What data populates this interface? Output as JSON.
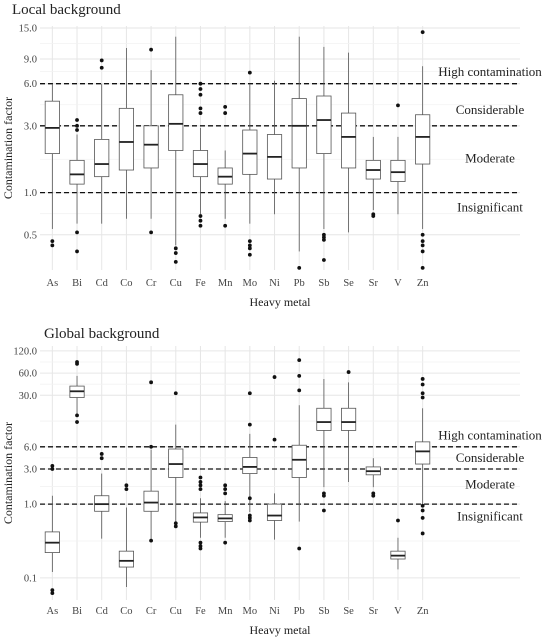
{
  "chart_data": [
    {
      "type": "box",
      "title": "Local background",
      "xlabel": "Heavy metal",
      "ylabel": "Contamination factor",
      "yscale": "log",
      "ylim": [
        0.28,
        15.5
      ],
      "yticks": [
        0.5,
        1.0,
        3.0,
        6.0,
        9.0,
        15.0
      ],
      "ytick_labels": [
        "0.5",
        "1.0",
        "3.0",
        "6.0",
        "9.0",
        "15.0"
      ],
      "grid": true,
      "thresholds": [
        {
          "value": 1.0,
          "label": "Insignificant"
        },
        {
          "value": 3.0,
          "label": "Moderate"
        },
        {
          "value": 6.0,
          "label": "Considerable"
        },
        {
          "value": 6.0,
          "label": "High contamination"
        }
      ],
      "zone_labels": [
        {
          "text": "High contamination",
          "at": 7.3
        },
        {
          "text": "Considerable",
          "at": 3.9
        },
        {
          "text": "Moderate",
          "at": 1.75
        },
        {
          "text": "Insignificant",
          "at": 0.78
        }
      ],
      "categories": [
        "As",
        "Bi",
        "Cd",
        "Co",
        "Cr",
        "Cu",
        "Fe",
        "Mn",
        "Mo",
        "Ni",
        "Pb",
        "Sb",
        "Se",
        "Sr",
        "V",
        "Zn"
      ],
      "boxes": [
        {
          "category": "As",
          "whislo": 0.55,
          "q1": 1.9,
          "med": 2.9,
          "q3": 4.5,
          "whishi": 6.0,
          "fliers": [
            0.42,
            0.45
          ]
        },
        {
          "category": "Bi",
          "whislo": 0.6,
          "q1": 1.15,
          "med": 1.35,
          "q3": 1.7,
          "whishi": 2.6,
          "fliers": [
            3.3,
            3.0,
            2.8,
            0.52,
            0.38
          ]
        },
        {
          "category": "Cd",
          "whislo": 0.6,
          "q1": 1.3,
          "med": 1.6,
          "q3": 2.4,
          "whishi": 6.0,
          "fliers": [
            7.8,
            8.8
          ]
        },
        {
          "category": "Co",
          "whislo": 0.65,
          "q1": 1.45,
          "med": 2.3,
          "q3": 4.0,
          "whishi": 10.8
        },
        {
          "category": "Cr",
          "whislo": 0.65,
          "q1": 1.5,
          "med": 2.2,
          "q3": 3.0,
          "whishi": 7.5,
          "fliers": [
            10.5,
            0.52
          ]
        },
        {
          "category": "Cu",
          "whislo": 0.42,
          "q1": 2.0,
          "med": 3.1,
          "q3": 5.0,
          "whishi": 13.0,
          "fliers": [
            0.4,
            0.37,
            0.32
          ]
        },
        {
          "category": "Fe",
          "whislo": 0.7,
          "q1": 1.3,
          "med": 1.6,
          "q3": 2.0,
          "whishi": 2.9,
          "fliers": [
            6.0,
            5.5,
            5.0,
            4.0,
            3.7,
            0.68,
            0.63,
            0.58
          ]
        },
        {
          "category": "Mn",
          "whislo": 0.65,
          "q1": 1.15,
          "med": 1.3,
          "q3": 1.5,
          "whishi": 2.0,
          "fliers": [
            4.1,
            3.7,
            0.58
          ]
        },
        {
          "category": "Mo",
          "whislo": 0.6,
          "q1": 1.35,
          "med": 1.9,
          "q3": 2.8,
          "whishi": 6.0,
          "fliers": [
            7.2,
            0.45,
            0.42,
            0.4,
            0.36
          ]
        },
        {
          "category": "Ni",
          "whislo": 0.7,
          "q1": 1.25,
          "med": 1.8,
          "q3": 2.6,
          "whishi": 6.3
        },
        {
          "category": "Pb",
          "whislo": 0.38,
          "q1": 1.5,
          "med": 3.0,
          "q3": 4.7,
          "whishi": 13.0,
          "fliers": [
            0.29
          ]
        },
        {
          "category": "Sb",
          "whislo": 0.55,
          "q1": 1.9,
          "med": 3.3,
          "q3": 4.9,
          "whishi": 11.0,
          "fliers": [
            0.5,
            0.48,
            0.46,
            0.33
          ]
        },
        {
          "category": "Se",
          "whislo": 0.52,
          "q1": 1.5,
          "med": 2.5,
          "q3": 3.7,
          "whishi": 10.0
        },
        {
          "category": "Sr",
          "whislo": 0.75,
          "q1": 1.25,
          "med": 1.45,
          "q3": 1.7,
          "whishi": 2.5,
          "fliers": [
            0.7,
            0.68
          ]
        },
        {
          "category": "V",
          "whislo": 0.7,
          "q1": 1.2,
          "med": 1.4,
          "q3": 1.7,
          "whishi": 2.5,
          "fliers": [
            4.2
          ]
        },
        {
          "category": "Zn",
          "whislo": 0.55,
          "q1": 1.6,
          "med": 2.5,
          "q3": 3.6,
          "whishi": 8.0,
          "fliers": [
            14.0,
            0.5,
            0.45,
            0.42,
            0.38,
            0.29
          ]
        }
      ]
    },
    {
      "type": "box",
      "title": "Global background",
      "xlabel": "Heavy metal",
      "ylabel": "Contamination factor",
      "yscale": "log",
      "ylim": [
        0.05,
        140
      ],
      "yticks": [
        0.1,
        1.0,
        3.0,
        6.0,
        30.0,
        60.0,
        120.0
      ],
      "ytick_labels": [
        "0.1",
        "1.0",
        "3.0",
        "6.0",
        "30.0",
        "60.0",
        "120.0"
      ],
      "grid": true,
      "thresholds": [
        {
          "value": 1.0,
          "label": "Insignificant"
        },
        {
          "value": 3.0,
          "label": "Moderate"
        },
        {
          "value": 6.0,
          "label": "Considerable"
        },
        {
          "value": 6.0,
          "label": "High contamination"
        }
      ],
      "zone_labels": [
        {
          "text": "High contamination",
          "at": 8.6
        },
        {
          "text": "Considerable",
          "at": 4.2
        },
        {
          "text": "Moderate",
          "at": 1.85
        },
        {
          "text": "Insignificant",
          "at": 0.68
        }
      ],
      "categories": [
        "As",
        "Bi",
        "Cd",
        "Co",
        "Cr",
        "Cu",
        "Fe",
        "Mn",
        "Mo",
        "Ni",
        "Pb",
        "Sb",
        "Se",
        "Sr",
        "V",
        "Zn"
      ],
      "boxes": [
        {
          "category": "As",
          "whislo": 0.12,
          "q1": 0.22,
          "med": 0.3,
          "q3": 0.42,
          "whishi": 1.3,
          "fliers": [
            3.3,
            3.0,
            0.068,
            0.062
          ]
        },
        {
          "category": "Bi",
          "whislo": 16.0,
          "q1": 28.0,
          "med": 34.0,
          "q3": 40.0,
          "whishi": 55.0,
          "fliers": [
            85.0,
            80.0,
            16.0,
            13.0
          ]
        },
        {
          "category": "Cd",
          "whislo": 0.34,
          "q1": 0.8,
          "med": 1.0,
          "q3": 1.3,
          "whishi": 2.6,
          "fliers": [
            4.8,
            4.2
          ]
        },
        {
          "category": "Co",
          "whislo": 0.075,
          "q1": 0.14,
          "med": 0.17,
          "q3": 0.23,
          "whishi": 0.9,
          "fliers": [
            1.8,
            1.6
          ]
        },
        {
          "category": "Cr",
          "whislo": 0.33,
          "q1": 0.8,
          "med": 1.05,
          "q3": 1.5,
          "whishi": 5.5,
          "fliers": [
            45.0,
            6.0,
            0.32
          ]
        },
        {
          "category": "Cu",
          "whislo": 0.55,
          "q1": 2.3,
          "med": 3.5,
          "q3": 5.6,
          "whishi": 12.0,
          "fliers": [
            32.0,
            0.55,
            0.5
          ]
        },
        {
          "category": "Fe",
          "whislo": 0.35,
          "q1": 0.57,
          "med": 0.66,
          "q3": 0.76,
          "whishi": 1.2,
          "fliers": [
            2.3,
            2.0,
            1.8,
            1.6,
            0.3,
            0.27,
            0.25
          ]
        },
        {
          "category": "Mn",
          "whislo": 0.35,
          "q1": 0.58,
          "med": 0.64,
          "q3": 0.72,
          "whishi": 1.1,
          "fliers": [
            1.8,
            1.6,
            1.4,
            0.3
          ]
        },
        {
          "category": "Mo",
          "whislo": 0.78,
          "q1": 2.6,
          "med": 3.2,
          "q3": 4.3,
          "whishi": 9.0,
          "fliers": [
            32.0,
            12.0,
            1.2,
            0.7,
            0.65,
            0.6
          ]
        },
        {
          "category": "Ni",
          "whislo": 0.33,
          "q1": 0.6,
          "med": 0.7,
          "q3": 1.0,
          "whishi": 1.4,
          "fliers": [
            53.0,
            7.5
          ]
        },
        {
          "category": "Pb",
          "whislo": 0.58,
          "q1": 2.3,
          "med": 4.0,
          "q3": 6.3,
          "whishi": 22.0,
          "fliers": [
            90.0,
            55.0,
            35.0,
            0.25
          ]
        },
        {
          "category": "Sb",
          "whislo": 1.7,
          "q1": 10.0,
          "med": 13.0,
          "q3": 20.0,
          "whishi": 50.0,
          "fliers": [
            1.4,
            1.3,
            0.82
          ]
        },
        {
          "category": "Se",
          "whislo": 2.0,
          "q1": 10.0,
          "med": 13.0,
          "q3": 20.0,
          "whishi": 45.0,
          "fliers": [
            62.0
          ]
        },
        {
          "category": "Sr",
          "whislo": 1.7,
          "q1": 2.5,
          "med": 2.8,
          "q3": 3.2,
          "whishi": 4.2,
          "fliers": [
            1.4,
            1.3
          ]
        },
        {
          "category": "V",
          "whislo": 0.13,
          "q1": 0.18,
          "med": 0.2,
          "q3": 0.23,
          "whishi": 0.35,
          "fliers": [
            0.6
          ]
        },
        {
          "category": "Zn",
          "whislo": 1.0,
          "q1": 3.5,
          "med": 5.2,
          "q3": 7.0,
          "whishi": 20.0,
          "fliers": [
            50.0,
            42.0,
            32.0,
            28.0,
            0.95,
            0.82,
            0.65,
            0.4
          ]
        }
      ]
    }
  ]
}
